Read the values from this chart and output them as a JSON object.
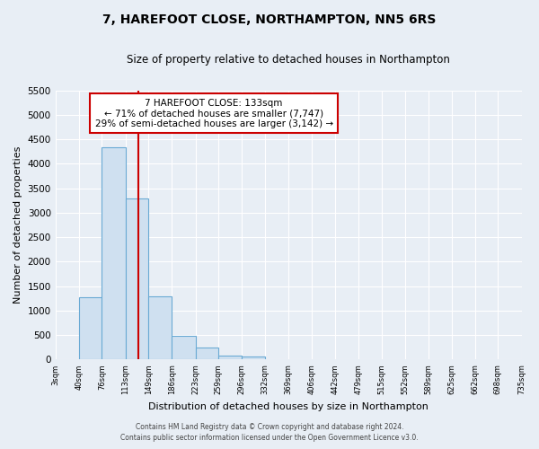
{
  "title": "7, HAREFOOT CLOSE, NORTHAMPTON, NN5 6RS",
  "subtitle": "Size of property relative to detached houses in Northampton",
  "xlabel": "Distribution of detached houses by size in Northampton",
  "ylabel": "Number of detached properties",
  "bin_edges": [
    3,
    40,
    76,
    113,
    149,
    186,
    223,
    259,
    296,
    332,
    369,
    406,
    442,
    479,
    515,
    552,
    589,
    625,
    662,
    698,
    735
  ],
  "bar_heights": [
    0,
    1270,
    4330,
    3300,
    1300,
    480,
    240,
    90,
    55,
    0,
    0,
    0,
    0,
    0,
    0,
    0,
    0,
    0,
    0,
    0
  ],
  "bar_color": "#cfe0f0",
  "bar_edge_color": "#6aaad4",
  "property_value": 133,
  "red_line_color": "#cc0000",
  "annotation_line1": "7 HAREFOOT CLOSE: 133sqm",
  "annotation_line2": "← 71% of detached houses are smaller (7,747)",
  "annotation_line3": "29% of semi-detached houses are larger (3,142) →",
  "annotation_box_edge": "#cc0000",
  "ylim": [
    0,
    5500
  ],
  "yticks": [
    0,
    500,
    1000,
    1500,
    2000,
    2500,
    3000,
    3500,
    4000,
    4500,
    5000,
    5500
  ],
  "footer_line1": "Contains HM Land Registry data © Crown copyright and database right 2024.",
  "footer_line2": "Contains public sector information licensed under the Open Government Licence v3.0.",
  "bg_color": "#e8eef5",
  "plot_bg_color": "#e8eef5",
  "grid_color": "#ffffff"
}
